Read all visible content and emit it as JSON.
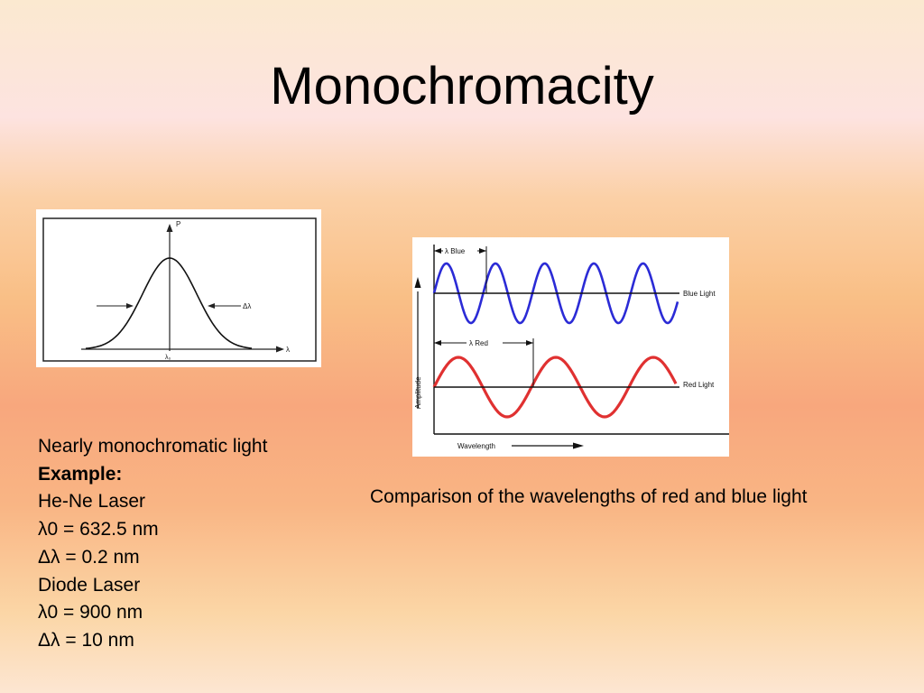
{
  "slide": {
    "title": "Monochromacity"
  },
  "figure_left": {
    "y_axis_label": "P",
    "x_axis_label": "λ",
    "center_label": "λ₀",
    "width_label": "Δλ"
  },
  "figure_right": {
    "blue_wavelength_label": "λ Blue",
    "blue_line_label": "Blue Light",
    "red_wavelength_label": "λ Red",
    "red_line_label": "Red Light",
    "y_axis_label": "Amplitude",
    "x_axis_label": "Wavelength",
    "blue_color": "#2b2bd6",
    "red_color": "#e03131"
  },
  "body_text": {
    "lines": [
      "Nearly monochromatic light",
      "Example:",
      "He-Ne Laser",
      "λ0 = 632.5 nm",
      "Δλ = 0.2 nm",
      "Diode Laser",
      "λ0 = 900 nm",
      "Δλ = 10 nm"
    ]
  },
  "caption": {
    "text": "Comparison of the wavelengths of red and blue light"
  }
}
